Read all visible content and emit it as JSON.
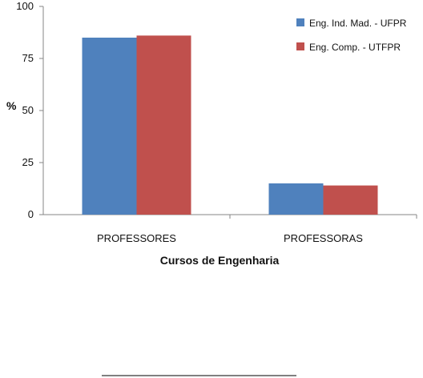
{
  "chart_data": {
    "type": "bar",
    "categories": [
      "PROFESSORES",
      "PROFESSORAS"
    ],
    "series": [
      {
        "name": "Eng. Ind. Mad. - UFPR",
        "values": [
          85,
          15
        ],
        "color": "#4F81BD"
      },
      {
        "name": "Eng. Comp. - UTFPR",
        "values": [
          86,
          14
        ],
        "color": "#C0504D"
      }
    ],
    "xlabel": "Cursos de Engenharia",
    "ylabel": "%",
    "ylim": [
      0,
      100
    ],
    "yticks": [
      "0",
      "25",
      "50",
      "75",
      "100"
    ],
    "grid": false,
    "legend": {
      "position": "top-right"
    }
  },
  "colors": {
    "axis": "#868686",
    "text": "#111111",
    "footnote_rule": "#000000"
  }
}
